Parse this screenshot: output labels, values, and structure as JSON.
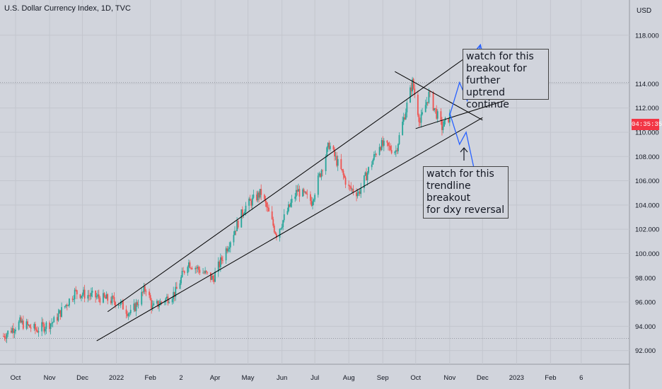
{
  "header": {
    "symbol_title": "U.S. Dollar Currency Index, 1D, TVC",
    "currency": "USD"
  },
  "price_badge": "04:35:35",
  "annotations": {
    "top_note": [
      "watch for this",
      "breakout for further",
      "uptrend continue"
    ],
    "bottom_note": [
      "watch for this",
      "trendline breakout",
      "for dxy reversal"
    ]
  },
  "colors": {
    "background": "#d1d4dc",
    "bull": "#26a69a",
    "bear": "#ef5350",
    "trendline": "#000000",
    "projection": "#2962ff",
    "badge": "#f23645"
  },
  "chart_data": {
    "type": "candlestick",
    "title": "U.S. Dollar Currency Index, 1D, TVC",
    "xlabel": "",
    "ylabel": "USD",
    "ylim": [
      91.0,
      120.0
    ],
    "y_ticks": [
      "118.000",
      "114.000",
      "112.000",
      "110.000",
      "108.000",
      "106.000",
      "104.000",
      "102.000",
      "100.000",
      "98.000",
      "96.000",
      "94.000",
      "92.000"
    ],
    "y_tick_values": [
      118,
      114,
      112,
      110,
      108,
      106,
      104,
      102,
      100,
      98,
      96,
      94,
      92
    ],
    "x_ticks": [
      "Oct",
      "Nov",
      "Dec",
      "2022",
      "Feb",
      "2",
      "Apr",
      "May",
      "Jun",
      "Jul",
      "Aug",
      "Sep",
      "Oct",
      "Nov",
      "Dec",
      "2023",
      "Feb",
      "6"
    ],
    "x_tick_dates": [
      "2021-10-01",
      "2021-11-01",
      "2021-12-01",
      "2022-01-01",
      "2022-02-01",
      "2022-03-01",
      "2022-04-01",
      "2022-05-01",
      "2022-06-01",
      "2022-07-01",
      "2022-08-01",
      "2022-09-01",
      "2022-10-01",
      "2022-11-01",
      "2022-12-01",
      "2023-01-01",
      "2023-02-01",
      "2023-03-01"
    ],
    "price_path": [
      [
        "2021-09-20",
        93.2
      ],
      [
        "2021-10-05",
        94.3
      ],
      [
        "2021-10-20",
        93.7
      ],
      [
        "2021-11-05",
        94.4
      ],
      [
        "2021-11-24",
        96.8
      ],
      [
        "2021-12-15",
        96.4
      ],
      [
        "2022-01-03",
        96.0
      ],
      [
        "2022-01-14",
        95.0
      ],
      [
        "2022-01-28",
        97.2
      ],
      [
        "2022-02-03",
        95.5
      ],
      [
        "2022-02-24",
        96.8
      ],
      [
        "2022-03-07",
        99.3
      ],
      [
        "2022-03-30",
        97.9
      ],
      [
        "2022-04-28",
        103.8
      ],
      [
        "2022-05-13",
        105.0
      ],
      [
        "2022-05-27",
        101.6
      ],
      [
        "2022-06-15",
        105.2
      ],
      [
        "2022-06-28",
        104.3
      ],
      [
        "2022-07-14",
        109.0
      ],
      [
        "2022-08-01",
        105.4
      ],
      [
        "2022-08-10",
        105.0
      ],
      [
        "2022-08-29",
        109.0
      ],
      [
        "2022-09-13",
        108.5
      ],
      [
        "2022-09-28",
        114.1
      ],
      [
        "2022-10-05",
        110.8
      ],
      [
        "2022-10-13",
        113.1
      ],
      [
        "2022-10-25",
        110.4
      ],
      [
        "2022-11-01",
        111.3
      ]
    ],
    "trendlines": [
      {
        "name": "channel-upper",
        "from": [
          "2021-12-24",
          95.2
        ],
        "to": [
          "2022-11-21",
          116.5
        ]
      },
      {
        "name": "channel-lower",
        "from": [
          "2021-12-14",
          92.8
        ],
        "to": [
          "2022-12-01",
          111.2
        ]
      },
      {
        "name": "wedge-top",
        "from": [
          "2022-09-12",
          115.0
        ],
        "to": [
          "2022-12-01",
          111.0
        ]
      },
      {
        "name": "wedge-bottom",
        "from": [
          "2022-10-01",
          110.3
        ],
        "to": [
          "2022-12-21",
          112.6
        ]
      }
    ],
    "projections": [
      {
        "name": "bullish-path",
        "points": [
          [
            "2022-11-01",
            111.4
          ],
          [
            "2022-11-10",
            114.1
          ],
          [
            "2022-11-17",
            112.6
          ],
          [
            "2022-11-29",
            117.2
          ]
        ]
      },
      {
        "name": "bearish-path",
        "points": [
          [
            "2022-11-01",
            111.6
          ],
          [
            "2022-11-10",
            109.0
          ],
          [
            "2022-11-16",
            110.0
          ],
          [
            "2022-11-29",
            104.6
          ]
        ]
      }
    ],
    "grid": true,
    "current_price_marker": true
  }
}
